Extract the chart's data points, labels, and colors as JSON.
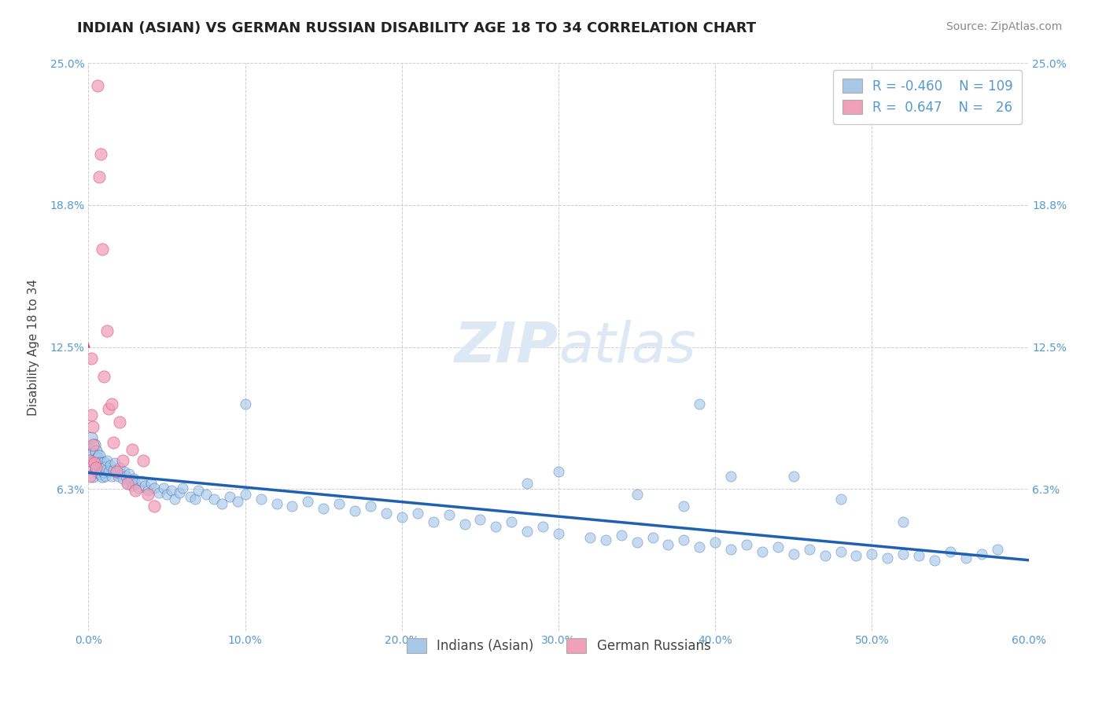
{
  "title": "INDIAN (ASIAN) VS GERMAN RUSSIAN DISABILITY AGE 18 TO 34 CORRELATION CHART",
  "source": "Source: ZipAtlas.com",
  "ylabel": "Disability Age 18 to 34",
  "xlim": [
    0.0,
    0.6
  ],
  "ylim": [
    0.0,
    0.25
  ],
  "xticks": [
    0.0,
    0.1,
    0.2,
    0.3,
    0.4,
    0.5,
    0.6
  ],
  "xticklabels": [
    "0.0%",
    "10.0%",
    "20.0%",
    "30.0%",
    "40.0%",
    "50.0%",
    "60.0%"
  ],
  "ytick_positions": [
    0.0,
    0.0625,
    0.125,
    0.1875,
    0.25
  ],
  "ytick_labels": [
    "",
    "6.3%",
    "12.5%",
    "18.8%",
    "25.0%"
  ],
  "grid_color": "#c8c8c8",
  "background_color": "#ffffff",
  "legend_R1": "-0.460",
  "legend_N1": "109",
  "legend_R2": "0.647",
  "legend_N2": "26",
  "legend_label1": "Indians (Asian)",
  "legend_label2": "German Russians",
  "blue_color": "#a8c8e8",
  "blue_line_color": "#2060b0",
  "pink_color": "#f0a0b8",
  "pink_line_color": "#e04070",
  "blue_scatter_x": [
    0.001,
    0.002,
    0.002,
    0.003,
    0.003,
    0.004,
    0.004,
    0.005,
    0.005,
    0.006,
    0.006,
    0.007,
    0.007,
    0.008,
    0.008,
    0.009,
    0.009,
    0.01,
    0.01,
    0.011,
    0.011,
    0.012,
    0.013,
    0.014,
    0.015,
    0.016,
    0.017,
    0.018,
    0.019,
    0.02,
    0.021,
    0.022,
    0.023,
    0.024,
    0.025,
    0.026,
    0.027,
    0.028,
    0.029,
    0.03,
    0.032,
    0.034,
    0.036,
    0.038,
    0.04,
    0.042,
    0.045,
    0.048,
    0.05,
    0.053,
    0.055,
    0.058,
    0.06,
    0.065,
    0.068,
    0.07,
    0.075,
    0.08,
    0.085,
    0.09,
    0.095,
    0.1,
    0.11,
    0.12,
    0.13,
    0.14,
    0.15,
    0.16,
    0.17,
    0.18,
    0.19,
    0.2,
    0.21,
    0.22,
    0.23,
    0.24,
    0.25,
    0.26,
    0.27,
    0.28,
    0.29,
    0.3,
    0.32,
    0.33,
    0.34,
    0.35,
    0.36,
    0.37,
    0.38,
    0.39,
    0.4,
    0.41,
    0.42,
    0.43,
    0.44,
    0.45,
    0.46,
    0.47,
    0.48,
    0.49,
    0.5,
    0.51,
    0.52,
    0.53,
    0.54,
    0.55,
    0.56,
    0.57,
    0.58
  ],
  "blue_scatter_y": [
    0.08,
    0.085,
    0.072,
    0.078,
    0.068,
    0.082,
    0.075,
    0.071,
    0.079,
    0.07,
    0.076,
    0.073,
    0.077,
    0.069,
    0.074,
    0.068,
    0.072,
    0.074,
    0.07,
    0.072,
    0.068,
    0.075,
    0.07,
    0.073,
    0.068,
    0.071,
    0.074,
    0.07,
    0.068,
    0.072,
    0.069,
    0.067,
    0.07,
    0.068,
    0.065,
    0.069,
    0.066,
    0.064,
    0.067,
    0.065,
    0.063,
    0.066,
    0.064,
    0.062,
    0.065,
    0.063,
    0.061,
    0.063,
    0.06,
    0.062,
    0.058,
    0.061,
    0.063,
    0.059,
    0.058,
    0.062,
    0.06,
    0.058,
    0.056,
    0.059,
    0.057,
    0.06,
    0.058,
    0.056,
    0.055,
    0.057,
    0.054,
    0.056,
    0.053,
    0.055,
    0.052,
    0.05,
    0.052,
    0.048,
    0.051,
    0.047,
    0.049,
    0.046,
    0.048,
    0.044,
    0.046,
    0.043,
    0.041,
    0.04,
    0.042,
    0.039,
    0.041,
    0.038,
    0.04,
    0.037,
    0.039,
    0.036,
    0.038,
    0.035,
    0.037,
    0.034,
    0.036,
    0.033,
    0.035,
    0.033,
    0.034,
    0.032,
    0.034,
    0.033,
    0.031,
    0.035,
    0.032,
    0.034,
    0.036
  ],
  "blue_scatter_x2": [
    0.39,
    0.41,
    0.35,
    0.3,
    0.28,
    0.45,
    0.48,
    0.52,
    0.1,
    0.38
  ],
  "blue_scatter_y2": [
    0.1,
    0.068,
    0.06,
    0.07,
    0.065,
    0.068,
    0.058,
    0.048,
    0.1,
    0.055
  ],
  "pink_scatter_x": [
    0.001,
    0.001,
    0.002,
    0.002,
    0.003,
    0.003,
    0.004,
    0.005,
    0.006,
    0.007,
    0.008,
    0.009,
    0.01,
    0.012,
    0.013,
    0.015,
    0.016,
    0.018,
    0.02,
    0.022,
    0.025,
    0.028,
    0.03,
    0.035,
    0.038,
    0.042
  ],
  "pink_scatter_y": [
    0.075,
    0.068,
    0.12,
    0.095,
    0.082,
    0.09,
    0.074,
    0.072,
    0.24,
    0.2,
    0.21,
    0.168,
    0.112,
    0.132,
    0.098,
    0.1,
    0.083,
    0.07,
    0.092,
    0.075,
    0.065,
    0.08,
    0.062,
    0.075,
    0.06,
    0.055
  ],
  "title_fontsize": 13,
  "axis_label_fontsize": 11,
  "tick_fontsize": 10,
  "legend_fontsize": 12,
  "watermark_fontsize": 52,
  "watermark_color": "#dce8f4",
  "source_fontsize": 10,
  "source_color": "#888888"
}
